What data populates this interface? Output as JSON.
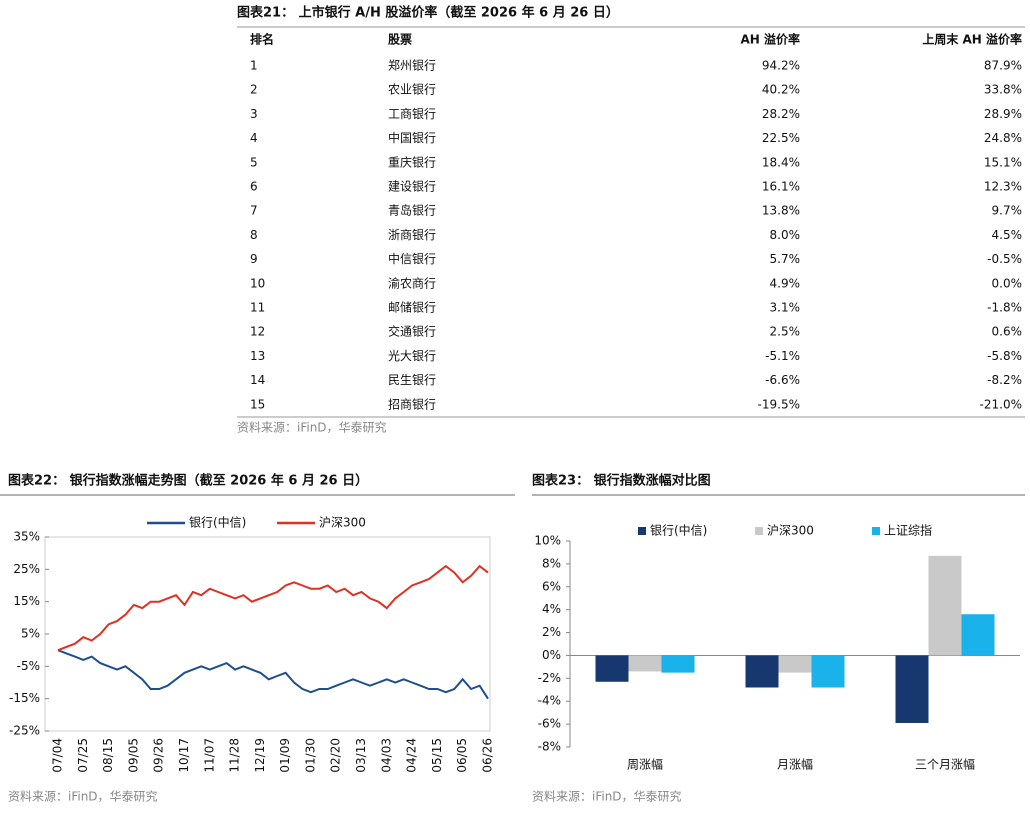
{
  "table": {
    "title": "图表21： 上市银行 A/H 股溢价率（截至 2026 年 6 月 26 日）",
    "header": [
      "排名",
      "股票",
      "AH 溢价率",
      "上周末 AH 溢价率"
    ],
    "rows": [
      [
        "1",
        "郑州银行",
        "94.2%",
        "87.9%"
      ],
      [
        "2",
        "农业银行",
        "40.2%",
        "33.8%"
      ],
      [
        "3",
        "工商银行",
        "28.2%",
        "28.9%"
      ],
      [
        "4",
        "中国银行",
        "22.5%",
        "24.8%"
      ],
      [
        "5",
        "重庆银行",
        "18.4%",
        "15.1%"
      ],
      [
        "6",
        "建设银行",
        "16.1%",
        "12.3%"
      ],
      [
        "7",
        "青岛银行",
        "13.8%",
        "9.7%"
      ],
      [
        "8",
        "浙商银行",
        "8.0%",
        "4.5%"
      ],
      [
        "9",
        "中信银行",
        "5.7%",
        "-0.5%"
      ],
      [
        "10",
        "渝农商行",
        "4.9%",
        "0.0%"
      ],
      [
        "11",
        "邮储银行",
        "3.1%",
        "-1.8%"
      ],
      [
        "12",
        "交通银行",
        "2.5%",
        "0.6%"
      ],
      [
        "13",
        "光大银行",
        "-5.1%",
        "-5.8%"
      ],
      [
        "14",
        "民生银行",
        "-6.6%",
        "-8.2%"
      ],
      [
        "15",
        "招商银行",
        "-19.5%",
        "-21.0%"
      ]
    ],
    "source": "资料来源：iFinD，华泰研究"
  },
  "chart_data": [
    {
      "type": "line",
      "title": "图表22： 银行指数涨幅走势图（截至 2026 年 6 月 26 日）",
      "source": "资料来源：iFinD，华泰研究",
      "categories": [
        "07/04",
        null,
        null,
        "07/25",
        null,
        null,
        "08/15",
        null,
        null,
        "09/05",
        null,
        null,
        "09/26",
        null,
        null,
        "10/17",
        null,
        null,
        "11/07",
        null,
        null,
        "11/28",
        null,
        null,
        "12/19",
        null,
        null,
        "01/09",
        null,
        null,
        "01/30",
        null,
        null,
        "02/20",
        null,
        null,
        "03/13",
        null,
        null,
        "04/03",
        null,
        null,
        "04/24",
        null,
        null,
        "05/15",
        null,
        null,
        "06/05",
        null,
        null,
        "06/26"
      ],
      "series": [
        {
          "name": "银行(中信)",
          "color": "#1f4e8c",
          "values": [
            0,
            -1,
            -2,
            -3,
            -2,
            -4,
            -5,
            -6,
            -5,
            -7,
            -9,
            -12,
            -12,
            -11,
            -9,
            -7,
            -6,
            -5,
            -6,
            -5,
            -4,
            -6,
            -5,
            -6,
            -7,
            -9,
            -8,
            -7,
            -10,
            -12,
            -13,
            -12,
            -12,
            -11,
            -10,
            -9,
            -10,
            -11,
            -10,
            -9,
            -10,
            -9,
            -10,
            -11,
            -12,
            -12,
            -13,
            -12,
            -9,
            -12,
            -11,
            -15
          ]
        },
        {
          "name": "沪深300",
          "color": "#e03020",
          "values": [
            0,
            1,
            2,
            4,
            3,
            5,
            8,
            9,
            11,
            14,
            13,
            15,
            15,
            16,
            17,
            14,
            18,
            17,
            19,
            18,
            17,
            16,
            17,
            15,
            16,
            17,
            18,
            20,
            21,
            20,
            19,
            19,
            20,
            18,
            19,
            17,
            18,
            16,
            15,
            13,
            16,
            18,
            20,
            21,
            22,
            24,
            26,
            24,
            21,
            23,
            26,
            24
          ]
        }
      ],
      "ylim": [
        -25,
        35
      ],
      "yticks": [
        {
          "value": -25,
          "label": "-25%"
        },
        {
          "value": -15,
          "label": "-15%"
        },
        {
          "value": -5,
          "label": "-5%"
        },
        {
          "value": 5,
          "label": "5%"
        },
        {
          "value": 15,
          "label": "15%"
        },
        {
          "value": 25,
          "label": "25%"
        },
        {
          "value": 35,
          "label": "35%"
        }
      ]
    },
    {
      "type": "bar",
      "title": "图表23： 银行指数涨幅对比图",
      "source": "资料来源：iFinD，华泰研究",
      "categories": [
        "周涨幅",
        "月涨幅",
        "三个月涨幅"
      ],
      "series": [
        {
          "name": "银行(中信)",
          "color": "#17386e",
          "values": [
            -2.3,
            -2.8,
            -5.9
          ]
        },
        {
          "name": "沪深300",
          "color": "#c9c9c9",
          "values": [
            -1.4,
            -1.5,
            8.7
          ]
        },
        {
          "name": "上证综指",
          "color": "#19b2ea",
          "values": [
            -1.5,
            -2.8,
            3.6
          ]
        }
      ],
      "ylim": [
        -8,
        10
      ],
      "yticks": [
        {
          "value": -8,
          "label": "-8%"
        },
        {
          "value": -6,
          "label": "-6%"
        },
        {
          "value": -4,
          "label": "-4%"
        },
        {
          "value": -2,
          "label": "-2%"
        },
        {
          "value": 0,
          "label": "0%"
        },
        {
          "value": 2,
          "label": "2%"
        },
        {
          "value": 4,
          "label": "4%"
        },
        {
          "value": 6,
          "label": "6%"
        },
        {
          "value": 8,
          "label": "8%"
        },
        {
          "value": 10,
          "label": "10%"
        }
      ]
    }
  ]
}
